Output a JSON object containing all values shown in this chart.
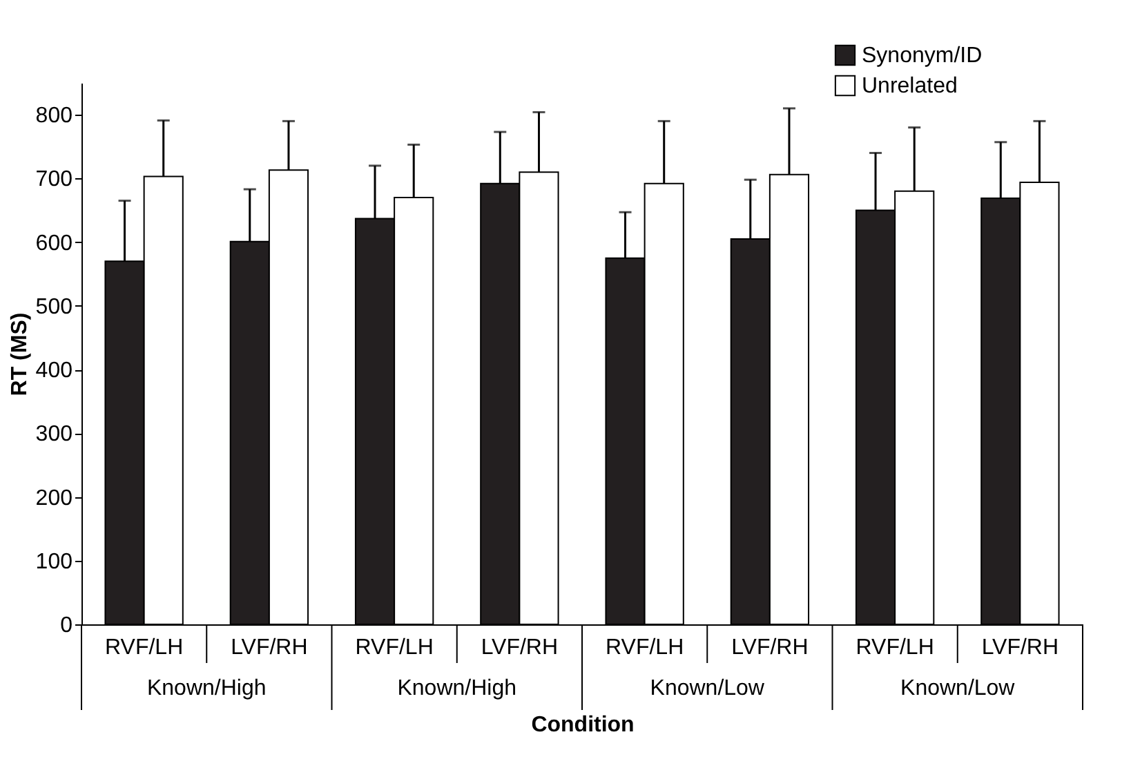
{
  "chart_data": {
    "type": "bar",
    "xlabel": "Condition",
    "ylabel": "RT (MS)",
    "categories": [
      "RVF/LH",
      "LVF/RH",
      "RVF/LH",
      "LVF/RH",
      "RVF/LH",
      "LVF/RH",
      "RVF/LH",
      "LVF/RH"
    ],
    "series": [
      {
        "name": "Synonym/ID",
        "color": "#231f20",
        "values": [
          570,
          601,
          637,
          692,
          575,
          605,
          650,
          669
        ],
        "errors": [
          95,
          82,
          83,
          81,
          72,
          93,
          90,
          88
        ]
      },
      {
        "name": "Unrelated",
        "color": "#ffffff",
        "values": [
          703,
          713,
          670,
          710,
          692,
          706,
          680,
          694
        ],
        "errors": [
          88,
          77,
          83,
          94,
          98,
          104,
          100,
          96
        ]
      }
    ],
    "annotations": [
      "Known/High",
      "Known/High",
      "Known/Low",
      "Known/Low"
    ],
    "ylim": [
      0,
      850
    ],
    "yticks": [
      0,
      100,
      200,
      300,
      400,
      500,
      600,
      700,
      800
    ],
    "grid": false,
    "legend": "top right"
  }
}
